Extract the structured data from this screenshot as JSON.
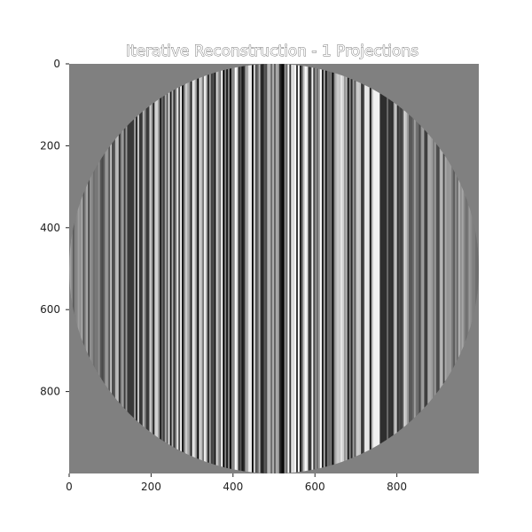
{
  "chart_data": {
    "type": "heatmap",
    "title": "Iterative Reconstruction - 1 Projections",
    "xlabel": "",
    "ylabel": "",
    "colormap": "gray",
    "image_size": [
      1000,
      1000
    ],
    "xlim": [
      0,
      1000
    ],
    "ylim": [
      1000,
      0
    ],
    "mask": "inscribed-circle",
    "background_value": 0.5,
    "pattern": "vertical-stripes",
    "x_ticks": [
      0,
      200,
      400,
      600,
      800
    ],
    "x_tick_labels": [
      "0",
      "200",
      "400",
      "600",
      "800"
    ],
    "y_ticks": [
      0,
      200,
      400,
      600,
      800
    ],
    "y_tick_labels": [
      "0",
      "200",
      "400",
      "600",
      "800"
    ],
    "grid": false,
    "legend": "none"
  }
}
